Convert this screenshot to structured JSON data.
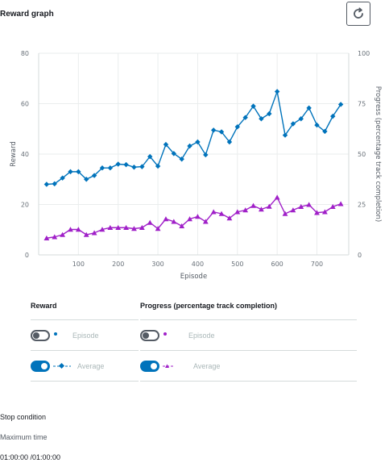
{
  "header": {
    "title": "Reward graph",
    "refresh_icon": "refresh-icon"
  },
  "chart_data": {
    "type": "line",
    "xlabel": "Episode",
    "ylabel": "Reward",
    "y2label": "Progress (percentage track completion)",
    "xlim": [
      0,
      780
    ],
    "ylim": [
      0,
      80
    ],
    "y2lim": [
      0,
      100
    ],
    "xticks": [
      100,
      200,
      300,
      400,
      500,
      600,
      700
    ],
    "yticks": [
      0,
      20,
      40,
      60,
      80
    ],
    "y2ticks": [
      0,
      25,
      50,
      75,
      100
    ],
    "grid": true,
    "x": [
      20,
      40,
      60,
      80,
      100,
      120,
      140,
      160,
      180,
      200,
      220,
      240,
      260,
      280,
      300,
      320,
      340,
      360,
      380,
      400,
      420,
      440,
      460,
      480,
      500,
      520,
      540,
      560,
      580,
      600,
      620,
      640,
      660,
      680,
      700,
      720,
      740,
      760
    ],
    "series": [
      {
        "name": "Reward",
        "axis": "left",
        "color": "#0073bb",
        "marker": "diamond",
        "values": [
          28.0,
          28.2,
          30.5,
          33.0,
          33.0,
          30.0,
          31.5,
          34.5,
          34.5,
          36.0,
          35.8,
          34.8,
          35.0,
          39.0,
          35.2,
          43.8,
          40.2,
          38.0,
          43.2,
          44.8,
          39.7,
          49.5,
          48.8,
          44.8,
          50.8,
          54.5,
          59.0,
          54.0,
          56.0,
          64.8,
          47.5,
          52.0,
          54.0,
          58.3,
          51.5,
          49.0,
          55.0,
          59.7
        ]
      },
      {
        "name": "Progress (percentage track completion)",
        "axis": "right",
        "color": "#a020c8",
        "marker": "triangle",
        "values": [
          8.3,
          8.9,
          10.0,
          12.6,
          12.6,
          10.0,
          10.9,
          12.6,
          13.5,
          13.5,
          13.5,
          13.0,
          13.5,
          16.0,
          13.0,
          17.8,
          16.5,
          14.3,
          17.8,
          19.0,
          16.5,
          21.3,
          20.4,
          18.2,
          21.3,
          22.2,
          24.4,
          22.6,
          24.0,
          28.5,
          20.4,
          22.2,
          23.9,
          24.9,
          20.9,
          21.3,
          23.9,
          25.3
        ]
      }
    ]
  },
  "legend": {
    "reward_title": "Reward",
    "progress_title": "Progress (percentage track completion)",
    "rows": [
      {
        "label": "Episode",
        "reward_on": false,
        "progress_on": false
      },
      {
        "label": "Average",
        "reward_on": true,
        "progress_on": true
      }
    ]
  },
  "stop_condition": {
    "title": "Stop condition",
    "label": "Maximum time",
    "value": "01:00:00 /01:00:00"
  }
}
